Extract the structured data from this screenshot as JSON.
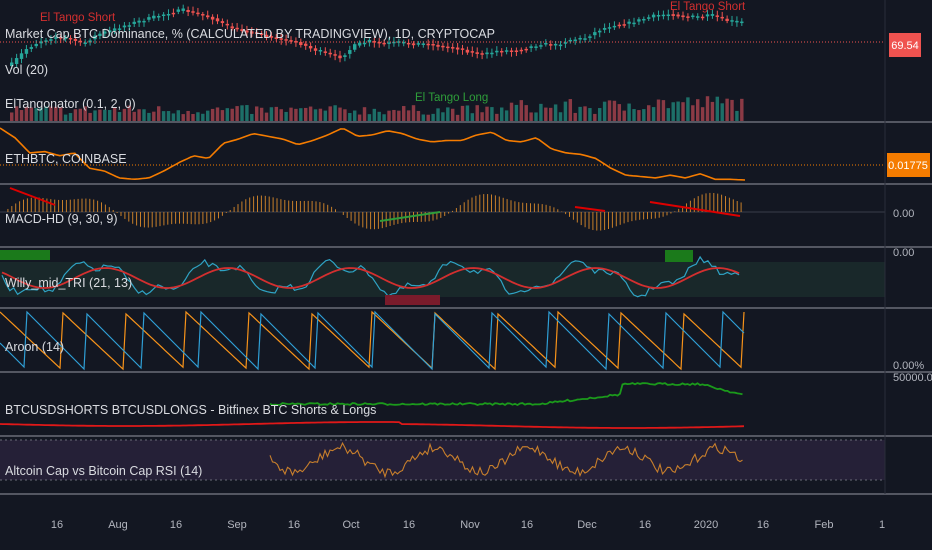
{
  "colors": {
    "background": "#131722",
    "separator": "#6a6d78",
    "up": "#26a69a",
    "down": "#ef5350",
    "orange": "#f57c00",
    "ethTag": "#f57c00",
    "domTag": "#ef5350",
    "macdLine": "#c77f2a",
    "aroonUp": "#f7931a",
    "aroonDown": "#2f9fd6",
    "willy": "#2fa3c4",
    "willySignal": "#d32f2f",
    "shorts": "#1b9a1b",
    "longs": "#e01818",
    "rsi": "#c87f2c",
    "rsiBand": "#2d2540"
  },
  "panes": [
    {
      "id": "dominance",
      "label": "Market Cap BTC Dominance, % (CALCULATED BY TRADINGVIEW), 1D, CRYPTOCAP",
      "price_tag": "69.54"
    },
    {
      "id": "volume",
      "label": "Vol (20)"
    },
    {
      "id": "eltangonator",
      "label": "ElTangonator (0.1, 2, 0)"
    },
    {
      "id": "ethbtc",
      "label": "ETHBTC, COINBASE",
      "price_tag": "0.01775"
    },
    {
      "id": "macd",
      "label": "MACD-HD (9, 30, 9)",
      "scale_label": "0.00"
    },
    {
      "id": "willy",
      "label": "Willy_mid_TRI (21, 13)",
      "scale_label": "0.00"
    },
    {
      "id": "aroon",
      "label": "Aroon (14)",
      "scale_label": "0.00%"
    },
    {
      "id": "bitfinex",
      "label": "BTCUSDSHORTS BTCUSDLONGS - Bitfinex BTC Shorts & Longs",
      "scale_label": "50000.00"
    },
    {
      "id": "rsi",
      "label": "Altcoin Cap vs Bitcoin Cap RSI (14)"
    }
  ],
  "annotations": {
    "short_left": "El Tango Short",
    "short_right": "El Tango Short",
    "long": "El Tango Long"
  },
  "x_axis": [
    "16",
    "Aug",
    "16",
    "Sep",
    "16",
    "Oct",
    "16",
    "Nov",
    "16",
    "Dec",
    "16",
    "2020",
    "16",
    "Feb",
    "1"
  ],
  "chart_data": {
    "type": "line",
    "x_range": [
      "2019-07-01",
      "2020-02-20"
    ],
    "x_ticks": [
      "16",
      "Aug",
      "16",
      "Sep",
      "16",
      "Oct",
      "16",
      "Nov",
      "16",
      "Dec",
      "16",
      "2020",
      "16",
      "Feb",
      "1"
    ],
    "series": [
      {
        "name": "Market Cap BTC Dominance, % (CALCULATED BY TRADINGVIEW), 1D, CRYPTOCAP",
        "last": 69.54,
        "values": [
          66.4,
          67.5,
          68.1,
          68.4,
          68.3,
          67.9,
          68.6,
          68.9,
          69.3,
          69.6,
          69.9,
          70.2,
          70.4,
          70.1,
          69.8,
          69.2,
          68.9,
          68.7,
          68.4,
          68.2,
          68.0,
          67.5,
          67.2,
          66.9,
          67.8,
          68.1,
          67.9,
          68.0,
          67.9,
          67.9,
          67.7,
          67.6,
          67.3,
          67.1,
          67.4,
          67.4,
          67.6,
          67.9,
          67.8,
          68.2,
          68.3,
          68.9,
          69.3,
          69.4,
          69.7,
          70.0,
          70.1,
          69.9,
          69.9,
          70.0,
          69.6,
          69.5
        ]
      },
      {
        "name": "ETHBTC, COINBASE",
        "last": 0.01775,
        "values": [
          0.0215,
          0.0208,
          0.0197,
          0.0198,
          0.0195,
          0.0197,
          0.0186,
          0.0184,
          0.0179,
          0.0178,
          0.0179,
          0.0184,
          0.019,
          0.0195,
          0.0193,
          0.0204,
          0.0207,
          0.0211,
          0.0209,
          0.0207,
          0.0203,
          0.0206,
          0.021,
          0.0215,
          0.0209,
          0.021,
          0.0213,
          0.0211,
          0.0207,
          0.0205,
          0.0206,
          0.0206,
          0.021,
          0.0212,
          0.0206,
          0.0205,
          0.0208,
          0.02,
          0.0197,
          0.0196,
          0.0193,
          0.0186,
          0.0181,
          0.018,
          0.0179,
          0.0181,
          0.0179,
          0.0182,
          0.0178,
          0.0178,
          0.01775
        ]
      }
    ]
  }
}
